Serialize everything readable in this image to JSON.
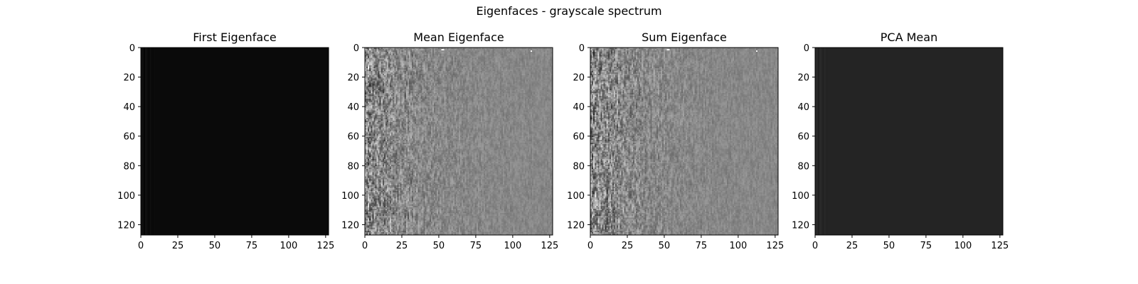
{
  "figure": {
    "suptitle": "Eigenfaces - grayscale spectrum"
  },
  "chart_data": [
    {
      "type": "heatmap",
      "title": "First Eigenface",
      "xlim": [
        0,
        127
      ],
      "ylim": [
        127,
        0
      ],
      "xticks": [
        0,
        25,
        50,
        75,
        100,
        125
      ],
      "yticks": [
        0,
        20,
        40,
        60,
        80,
        100,
        120
      ],
      "colormap": "gray",
      "pattern": "dark",
      "base_gray": 10,
      "grid": false,
      "origin": "upper"
    },
    {
      "type": "heatmap",
      "title": "Mean Eigenface",
      "xlim": [
        0,
        127
      ],
      "ylim": [
        127,
        0
      ],
      "xticks": [
        0,
        25,
        50,
        75,
        100,
        125
      ],
      "yticks": [
        0,
        20,
        40,
        60,
        80,
        100,
        120
      ],
      "colormap": "gray",
      "pattern": "noise",
      "base_gray": 135,
      "grid": false,
      "origin": "upper"
    },
    {
      "type": "heatmap",
      "title": "Sum Eigenface",
      "xlim": [
        0,
        127
      ],
      "ylim": [
        127,
        0
      ],
      "xticks": [
        0,
        25,
        50,
        75,
        100,
        125
      ],
      "yticks": [
        0,
        20,
        40,
        60,
        80,
        100,
        120
      ],
      "colormap": "gray",
      "pattern": "noise",
      "base_gray": 135,
      "grid": false,
      "origin": "upper"
    },
    {
      "type": "heatmap",
      "title": "PCA Mean",
      "xlim": [
        0,
        127
      ],
      "ylim": [
        127,
        0
      ],
      "xticks": [
        0,
        25,
        50,
        75,
        100,
        125
      ],
      "yticks": [
        0,
        20,
        40,
        60,
        80,
        100,
        120
      ],
      "colormap": "gray",
      "pattern": "dark",
      "base_gray": 36,
      "grid": false,
      "origin": "upper"
    }
  ]
}
